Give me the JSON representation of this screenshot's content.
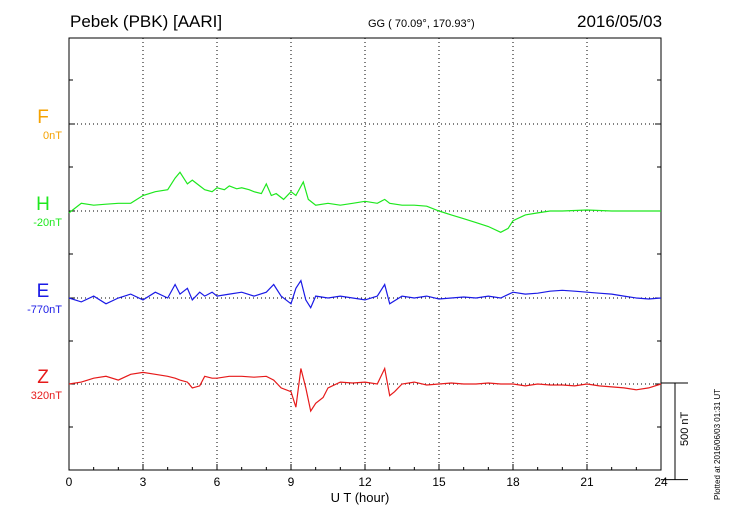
{
  "header": {
    "station": "Pebek (PBK)  [AARI]",
    "coords": "GG ( 70.09°, 170.93°)",
    "date": "2016/05/03"
  },
  "plotted_note": "Plotted at 2016/06/03 01:31  UT",
  "scale_bar": {
    "label": "500 nT",
    "value_nT": 500
  },
  "colors": {
    "F": "#f5a200",
    "H": "#1ee81e",
    "E": "#1a1ae6",
    "Z": "#e61a1a",
    "grid": "#000000"
  },
  "chart_data": {
    "type": "line",
    "xlabel": "U T (hour)",
    "xlim": [
      0,
      24
    ],
    "x_ticks": [
      "0",
      "3",
      "6",
      "9",
      "12",
      "15",
      "18",
      "21",
      "24"
    ],
    "channel_spacing_nT": 450,
    "series": [
      {
        "name": "F",
        "baseline_label": "0nT",
        "x": [],
        "values": []
      },
      {
        "name": "H",
        "baseline_label": "-20nT",
        "x": [
          0,
          0.5,
          1,
          1.5,
          2,
          2.5,
          3,
          3.5,
          4,
          4.3,
          4.5,
          4.8,
          5,
          5.3,
          5.5,
          5.8,
          6,
          6.3,
          6.5,
          6.8,
          7,
          7.3,
          7.5,
          7.8,
          8,
          8.2,
          8.4,
          8.7,
          9,
          9.2,
          9.5,
          9.7,
          10,
          10.5,
          11,
          11.5,
          12,
          12.5,
          12.8,
          13,
          13.5,
          14,
          14.5,
          15,
          15.5,
          16,
          16.5,
          17,
          17.5,
          17.8,
          18,
          18.5,
          19,
          19.5,
          20,
          21,
          22,
          23,
          24
        ],
        "values": [
          -30,
          20,
          10,
          15,
          20,
          20,
          60,
          80,
          90,
          150,
          180,
          120,
          140,
          110,
          90,
          80,
          100,
          90,
          110,
          95,
          100,
          90,
          80,
          70,
          120,
          60,
          70,
          40,
          80,
          60,
          130,
          40,
          10,
          20,
          10,
          20,
          30,
          20,
          40,
          20,
          10,
          10,
          5,
          -20,
          -40,
          -60,
          -80,
          -100,
          -130,
          -110,
          -70,
          -40,
          -30,
          -20,
          -20,
          -15,
          -20,
          -20,
          -20
        ]
      },
      {
        "name": "E",
        "baseline_label": "-770nT",
        "x": [
          0,
          0.5,
          1,
          1.5,
          2,
          2.5,
          3,
          3.5,
          4,
          4.3,
          4.5,
          4.8,
          5,
          5.3,
          5.5,
          5.8,
          6,
          6.5,
          7,
          7.5,
          8,
          8.3,
          8.6,
          9,
          9.2,
          9.4,
          9.6,
          9.8,
          10,
          10.5,
          11,
          11.5,
          12,
          12.5,
          12.8,
          13,
          13.5,
          14,
          14.5,
          15,
          15.5,
          16,
          16.5,
          17,
          17.5,
          18,
          18.5,
          19,
          19.5,
          20,
          20.5,
          21,
          21.5,
          22,
          22.5,
          23,
          23.5,
          24
        ],
        "values": [
          -770,
          -790,
          -760,
          -800,
          -770,
          -750,
          -780,
          -740,
          -770,
          -700,
          -750,
          -720,
          -780,
          -740,
          -760,
          -740,
          -760,
          -750,
          -740,
          -760,
          -740,
          -700,
          -760,
          -800,
          -720,
          -680,
          -780,
          -820,
          -760,
          -770,
          -760,
          -770,
          -780,
          -760,
          -700,
          -800,
          -760,
          -770,
          -760,
          -775,
          -770,
          -765,
          -770,
          -760,
          -770,
          -740,
          -750,
          -745,
          -735,
          -730,
          -735,
          -740,
          -745,
          -750,
          -760,
          -770,
          -775,
          -770
        ]
      },
      {
        "name": "Z",
        "baseline_label": "320nT",
        "x": [
          0,
          0.5,
          1,
          1.5,
          2,
          2.5,
          3,
          3.5,
          4,
          4.3,
          4.5,
          4.8,
          5,
          5.3,
          5.5,
          5.8,
          6,
          6.5,
          7,
          7.5,
          8,
          8.3,
          8.6,
          9,
          9.2,
          9.4,
          9.6,
          9.8,
          10,
          10.3,
          10.5,
          11,
          11.5,
          12,
          12.5,
          12.8,
          13,
          13.2,
          13.5,
          14,
          14.5,
          15,
          15.5,
          16,
          16.5,
          17,
          17.5,
          18,
          18.5,
          19,
          19.5,
          20,
          20.5,
          21,
          21.5,
          22,
          22.5,
          23,
          23.5,
          24
        ],
        "values": [
          320,
          330,
          350,
          360,
          340,
          370,
          380,
          370,
          360,
          350,
          340,
          330,
          300,
          310,
          360,
          350,
          350,
          360,
          360,
          355,
          360,
          340,
          300,
          280,
          200,
          400,
          300,
          180,
          220,
          250,
          300,
          330,
          325,
          330,
          320,
          400,
          260,
          280,
          320,
          330,
          315,
          320,
          325,
          320,
          320,
          325,
          320,
          320,
          310,
          320,
          315,
          315,
          310,
          320,
          310,
          305,
          300,
          290,
          300,
          320
        ]
      }
    ]
  }
}
